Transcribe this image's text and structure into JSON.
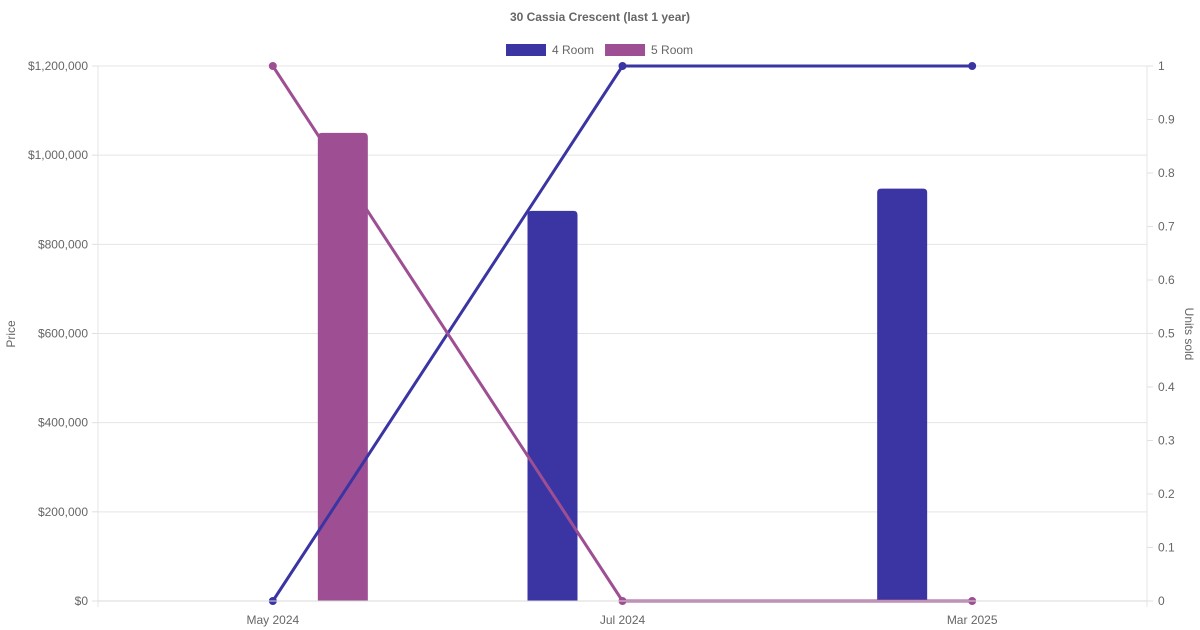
{
  "chart_data": {
    "type": "bar",
    "title": "30 Cassia Crescent (last 1 year)",
    "categories": [
      "May 2024",
      "Jul 2024",
      "Mar 2025"
    ],
    "y_left": {
      "label": "Price",
      "ylim": [
        0,
        1200000
      ],
      "ticks": [
        "$0",
        "$200,000",
        "$400,000",
        "$600,000",
        "$800,000",
        "$1,000,000",
        "$1,200,000"
      ]
    },
    "y_right": {
      "label": "Units sold",
      "ylim": [
        0,
        1
      ],
      "ticks": [
        "0",
        "0.1",
        "0.2",
        "0.3",
        "0.4",
        "0.5",
        "0.6",
        "0.7",
        "0.8",
        "0.9",
        "1"
      ]
    },
    "legend": {
      "placement": "top-center",
      "entries": [
        "4 Room",
        "5 Room"
      ]
    },
    "grid": true,
    "series": [
      {
        "name": "4 Room",
        "kind": "bar",
        "axis": "left",
        "color": "#3a35a2",
        "values": [
          null,
          875000,
          925000
        ]
      },
      {
        "name": "5 Room",
        "kind": "bar",
        "axis": "left",
        "color": "#9e4f93",
        "values": [
          1050000,
          null,
          null
        ]
      },
      {
        "name": "4 Room",
        "kind": "line",
        "axis": "right",
        "color": "#3a35a2",
        "values": [
          0,
          1,
          1
        ]
      },
      {
        "name": "5 Room",
        "kind": "line",
        "axis": "right",
        "color": "#9e4f93",
        "values": [
          1,
          0,
          0
        ]
      }
    ]
  }
}
